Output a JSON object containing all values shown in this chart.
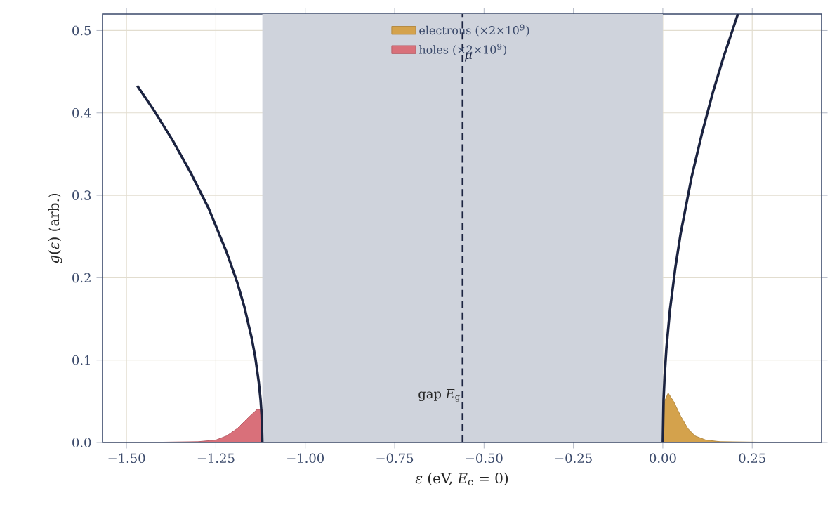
{
  "chart_data": {
    "type": "line",
    "xlabel": "*ε*  (eV, *E*$_{c}$ = 0)",
    "ylabel": "*g*(*ε*)  (arb.)",
    "xlim": [
      -1.567,
      0.444
    ],
    "ylim": [
      0,
      0.52
    ],
    "xticks": [
      {
        "value": -1.5,
        "label": "−1.50"
      },
      {
        "value": -1.25,
        "label": "−1.25"
      },
      {
        "value": -1.0,
        "label": "−1.00"
      },
      {
        "value": -0.75,
        "label": "−0.75"
      },
      {
        "value": -0.5,
        "label": "−0.50"
      },
      {
        "value": -0.25,
        "label": "−0.25"
      },
      {
        "value": 0,
        "label": "0.00"
      },
      {
        "value": 0.25,
        "label": "0.25"
      }
    ],
    "yticks": [
      {
        "value": 0,
        "label": "0.0"
      },
      {
        "value": 0.1,
        "label": "0.1"
      },
      {
        "value": 0.2,
        "label": "0.2"
      },
      {
        "value": 0.3,
        "label": "0.3"
      },
      {
        "value": 0.4,
        "label": "0.4"
      },
      {
        "value": 0.5,
        "label": "0.5"
      }
    ],
    "grid": true,
    "legend": "top",
    "bands": [
      {
        "axis": "x",
        "from": -1.12,
        "to": 0,
        "label": "gap *E*$_{g}$",
        "color": "#cfd3dc"
      }
    ],
    "ref_lines": [
      {
        "axis": "x",
        "value": -0.56,
        "label": "*μ*",
        "color": "#1b2340",
        "line_style": "dashed"
      }
    ],
    "series": [
      {
        "type": "area",
        "name": "electrons (×2×10$^{9}$)",
        "color": "#d4a24c",
        "x": [
          0,
          0.005,
          0.015,
          0.03,
          0.05,
          0.07,
          0.09,
          0.12,
          0.16,
          0.35
        ],
        "values": [
          0,
          0.05,
          0.06,
          0.05,
          0.032,
          0.017,
          0.008,
          0.003,
          0.001,
          0
        ]
      },
      {
        "type": "area",
        "name": "holes (×2×10$^{9}$)",
        "color": "#d9707a",
        "x": [
          -1.47,
          -1.3,
          -1.25,
          -1.22,
          -1.19,
          -1.16,
          -1.135,
          -1.12
        ],
        "values": [
          0,
          0.001,
          0.003,
          0.008,
          0.017,
          0.03,
          0.04,
          0.04
        ]
      },
      {
        "color": "#1b2340",
        "x": [
          -1.47,
          -1.42,
          -1.37,
          -1.32,
          -1.27,
          -1.22,
          -1.19,
          -1.17,
          -1.15,
          -1.14,
          -1.13,
          -1.125,
          -1.122,
          -1.12
        ],
        "values": [
          0.433,
          0.401,
          0.366,
          0.327,
          0.284,
          0.231,
          0.194,
          0.164,
          0.127,
          0.104,
          0.073,
          0.052,
          0.033,
          0
        ]
      },
      {
        "color": "#1b2340",
        "x": [
          0,
          0.002,
          0.005,
          0.01,
          0.02,
          0.035,
          0.05,
          0.08,
          0.11,
          0.14,
          0.17,
          0.21
        ],
        "values": [
          0,
          0.051,
          0.08,
          0.114,
          0.161,
          0.212,
          0.254,
          0.321,
          0.376,
          0.425,
          0.468,
          0.52
        ]
      }
    ]
  }
}
